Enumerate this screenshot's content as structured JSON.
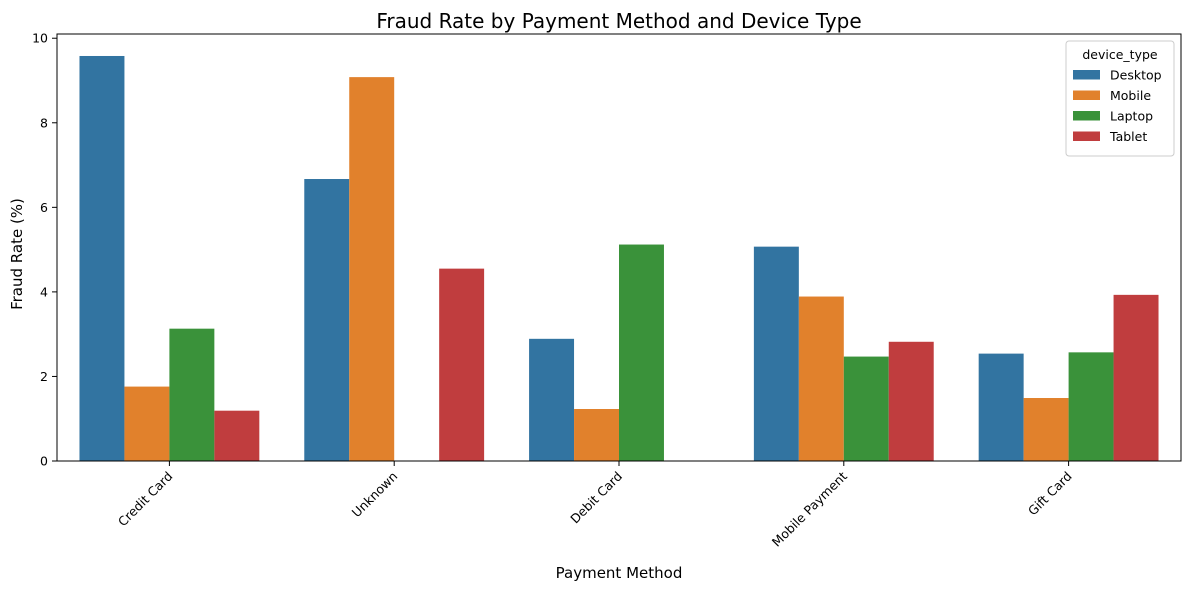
{
  "chart_data": {
    "type": "bar",
    "title": "Fraud Rate by Payment Method and Device Type",
    "xlabel": "Payment Method",
    "ylabel": "Fraud Rate (%)",
    "categories": [
      "Credit Card",
      "Unknown",
      "Debit Card",
      "Mobile Payment",
      "Gift Card"
    ],
    "ylim": [
      0,
      10.1
    ],
    "yticks": [
      0,
      2,
      4,
      6,
      8,
      10
    ],
    "x_tick_rotation_deg": 45,
    "grid": false,
    "legend": {
      "title": "device_type",
      "placement": "top-right"
    },
    "series": [
      {
        "name": "Desktop",
        "color": "#3274a1",
        "values": [
          9.58,
          6.67,
          2.89,
          5.07,
          2.54
        ]
      },
      {
        "name": "Mobile",
        "color": "#e1812c",
        "values": [
          1.76,
          9.08,
          1.23,
          3.89,
          1.49
        ]
      },
      {
        "name": "Laptop",
        "color": "#3a923a",
        "values": [
          3.13,
          0,
          5.12,
          2.47,
          2.57
        ]
      },
      {
        "name": "Tablet",
        "color": "#c03d3e",
        "values": [
          1.19,
          4.55,
          0,
          2.82,
          3.93
        ]
      }
    ]
  }
}
